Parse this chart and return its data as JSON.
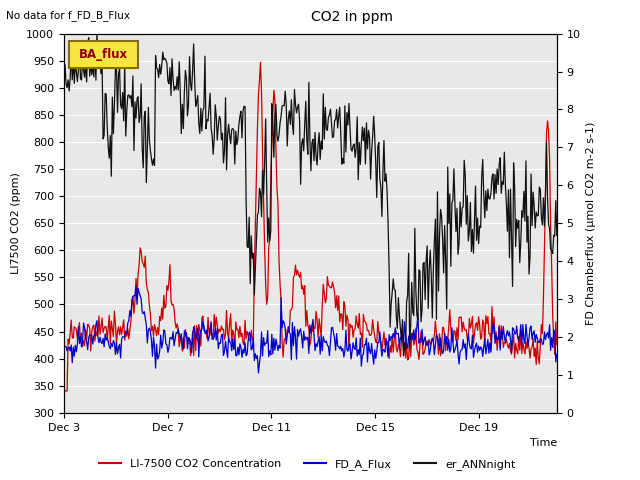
{
  "title": "CO2 in ppm",
  "top_left_text": "No data for f_FD_B_Flux",
  "xlabel": "Time",
  "ylabel_left": "LI7500 CO2 (ppm)",
  "ylabel_right": "FD Chamberflux (µmol CO2 m-2 s-1)",
  "ylim_left": [
    300,
    1000
  ],
  "ylim_right": [
    0.0,
    10.0
  ],
  "yticks_left": [
    300,
    350,
    400,
    450,
    500,
    550,
    600,
    650,
    700,
    750,
    800,
    850,
    900,
    950,
    1000
  ],
  "yticks_right": [
    0.0,
    1.0,
    2.0,
    3.0,
    4.0,
    5.0,
    6.0,
    7.0,
    8.0,
    9.0,
    10.0
  ],
  "xtick_labels": [
    "Dec 3",
    "Dec 7",
    "Dec 11",
    "Dec 15",
    "Dec 19"
  ],
  "xtick_positions": [
    0,
    4,
    8,
    12,
    16
  ],
  "xmax": 19,
  "legend_box_label": "BA_flux",
  "legend_entries": [
    "LI-7500 CO2 Concentration",
    "FD_A_Flux",
    "er_ANNnight"
  ],
  "legend_colors": [
    "#cc0000",
    "#0000cc",
    "#111111"
  ],
  "color_red": "#cc0000",
  "color_blue": "#0000cc",
  "color_black": "#111111",
  "bg_color": "#e8e8e8",
  "figsize": [
    6.4,
    4.8
  ],
  "dpi": 100
}
